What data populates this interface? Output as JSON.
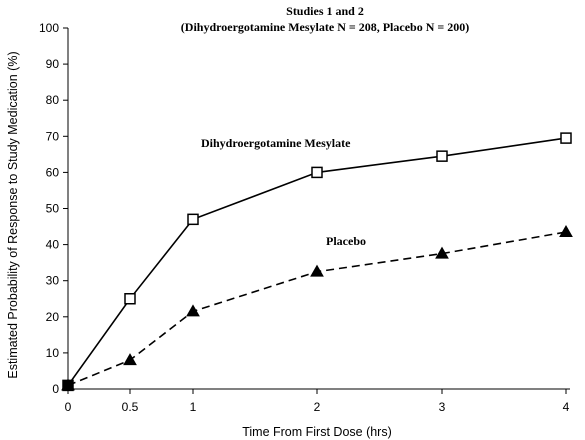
{
  "chart_data": {
    "type": "line",
    "title": "Studies 1 and 2",
    "subtitle": "(Dihydroergotamine Mesylate N = 208, Placebo N = 200)",
    "xlabel": "Time From First Dose (hrs)",
    "ylabel": "Estimated Probability of Response to Study Medication (%)",
    "x_ticks": [
      {
        "value": 0,
        "label": "0"
      },
      {
        "value": 0.5,
        "label": "0.5"
      },
      {
        "value": 1,
        "label": "1"
      },
      {
        "value": 2,
        "label": "2"
      },
      {
        "value": 3,
        "label": "3"
      },
      {
        "value": 4,
        "label": "4"
      }
    ],
    "y_ticks": [
      {
        "value": 0,
        "label": "0"
      },
      {
        "value": 10,
        "label": "10"
      },
      {
        "value": 20,
        "label": "20"
      },
      {
        "value": 30,
        "label": "30"
      },
      {
        "value": 40,
        "label": "40"
      },
      {
        "value": 50,
        "label": "50"
      },
      {
        "value": 60,
        "label": "60"
      },
      {
        "value": 70,
        "label": "70"
      },
      {
        "value": 80,
        "label": "80"
      },
      {
        "value": 90,
        "label": "90"
      },
      {
        "value": 100,
        "label": "100"
      }
    ],
    "ylim": [
      0,
      100
    ],
    "grid": false,
    "legend": "none",
    "series": [
      {
        "name": "Dihydroergotamine Mesylate",
        "line_style": "solid",
        "marker": "open-square",
        "color": "#000000",
        "points": [
          {
            "x": 0,
            "y": 1
          },
          {
            "x": 0.5,
            "y": 25
          },
          {
            "x": 1,
            "y": 47
          },
          {
            "x": 2,
            "y": 60
          },
          {
            "x": 3,
            "y": 64.5
          },
          {
            "x": 4,
            "y": 69.5
          }
        ]
      },
      {
        "name": "Placebo",
        "line_style": "dashed",
        "marker": "filled-triangle",
        "color": "#000000",
        "points": [
          {
            "x": 0,
            "y": 1
          },
          {
            "x": 0.5,
            "y": 8
          },
          {
            "x": 1,
            "y": 21.5
          },
          {
            "x": 2,
            "y": 32.5
          },
          {
            "x": 3,
            "y": 37.5
          },
          {
            "x": 4,
            "y": 43.5
          }
        ]
      }
    ]
  }
}
